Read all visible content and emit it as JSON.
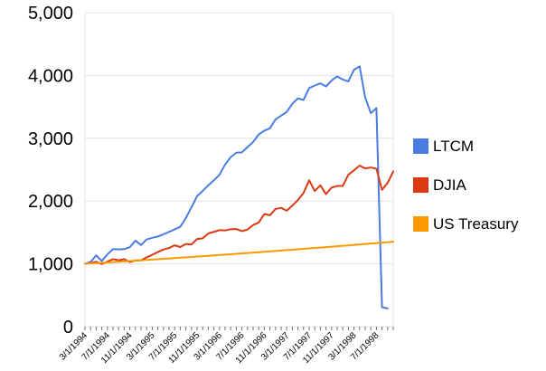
{
  "chart_data": {
    "type": "line",
    "title": "",
    "xlabel": "",
    "ylabel": "",
    "ylim": [
      0,
      5000
    ],
    "yticks": [
      0,
      1000,
      2000,
      3000,
      4000,
      5000
    ],
    "ytick_labels": [
      "0",
      "1,000",
      "2,000",
      "3,000",
      "4,000",
      "5,000"
    ],
    "grid": "horizontal",
    "legend_position": "right",
    "x_label_every": 4,
    "x": [
      "3/1/1994",
      "4/1/1994",
      "5/1/1994",
      "6/1/1994",
      "7/1/1994",
      "8/1/1994",
      "9/1/1994",
      "10/1/1994",
      "11/1/1994",
      "12/1/1994",
      "1/1/1995",
      "2/1/1995",
      "3/1/1995",
      "4/1/1995",
      "5/1/1995",
      "6/1/1995",
      "7/1/1995",
      "8/1/1995",
      "9/1/1995",
      "10/1/1995",
      "11/1/1995",
      "12/1/1995",
      "1/1/1996",
      "2/1/1996",
      "3/1/1996",
      "4/1/1996",
      "5/1/1996",
      "6/1/1996",
      "7/1/1996",
      "8/1/1996",
      "9/1/1996",
      "10/1/1996",
      "11/1/1996",
      "12/1/1996",
      "1/1/1997",
      "2/1/1997",
      "3/1/1997",
      "4/1/1997",
      "5/1/1997",
      "6/1/1997",
      "7/1/1997",
      "8/1/1997",
      "9/1/1997",
      "10/1/1997",
      "11/1/1997",
      "12/1/1997",
      "1/1/1998",
      "2/1/1998",
      "3/1/1998",
      "4/1/1998",
      "5/1/1998",
      "6/1/1998",
      "7/1/1998",
      "8/1/1998",
      "9/1/1998",
      "10/1/1998"
    ],
    "x_tick_labels": [
      "3/1/1994",
      "7/1/1994",
      "11/1/1994",
      "3/1/1995",
      "7/1/1995",
      "11/1/1995",
      "3/1/1996",
      "7/1/1996",
      "11/1/1996",
      "3/1/1997",
      "7/1/1997",
      "11/1/1997",
      "3/1/1998",
      "7/1/1998"
    ],
    "series": [
      {
        "name": "LTCM",
        "color": "#4a7de2",
        "values": [
          1000,
          1030,
          1135,
          1045,
          1150,
          1235,
          1230,
          1235,
          1265,
          1370,
          1300,
          1390,
          1415,
          1435,
          1470,
          1510,
          1550,
          1590,
          1730,
          1900,
          2080,
          2160,
          2250,
          2330,
          2420,
          2580,
          2700,
          2770,
          2775,
          2860,
          2940,
          3060,
          3120,
          3160,
          3300,
          3360,
          3420,
          3550,
          3635,
          3610,
          3800,
          3840,
          3875,
          3825,
          3920,
          3985,
          3935,
          3905,
          4090,
          4145,
          3650,
          3400,
          3480,
          310,
          290,
          null
        ]
      },
      {
        "name": "DJIA",
        "color": "#dc3912",
        "values": [
          1000,
          1013,
          1034,
          997,
          1035,
          1076,
          1057,
          1075,
          1028,
          1054,
          1057,
          1103,
          1144,
          1188,
          1228,
          1253,
          1295,
          1268,
          1317,
          1308,
          1396,
          1407,
          1484,
          1509,
          1537,
          1532,
          1552,
          1555,
          1521,
          1545,
          1618,
          1658,
          1794,
          1773,
          1874,
          1892,
          1846,
          1928,
          2016,
          2130,
          2330,
          2160,
          2250,
          2110,
          2215,
          2240,
          2240,
          2420,
          2490,
          2565,
          2520,
          2535,
          2515,
          2180,
          2290,
          2470
        ]
      },
      {
        "name": "US Treasury",
        "color": "#ff9900",
        "values": [
          1000,
          1006,
          1011,
          1017,
          1022,
          1028,
          1033,
          1039,
          1045,
          1051,
          1056,
          1062,
          1068,
          1074,
          1080,
          1086,
          1092,
          1098,
          1104,
          1110,
          1116,
          1122,
          1128,
          1135,
          1141,
          1147,
          1153,
          1160,
          1166,
          1173,
          1179,
          1186,
          1192,
          1199,
          1205,
          1212,
          1219,
          1225,
          1232,
          1239,
          1246,
          1253,
          1259,
          1266,
          1273,
          1280,
          1287,
          1294,
          1302,
          1309,
          1316,
          1323,
          1330,
          1338,
          1345,
          1352
        ]
      }
    ],
    "style": {
      "gridline_color": "#e2e2e2",
      "tick_color": "#6e6e6e",
      "axis_text_color": "#000000",
      "background": "#ffffff"
    }
  }
}
